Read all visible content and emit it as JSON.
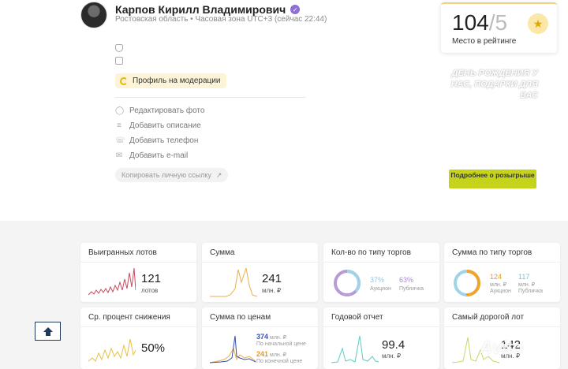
{
  "profile": {
    "name": "Карпов Кирилл Владимирович",
    "region": "Ростовская область • Часовая зона UTC+3 (сейчас 22:44)",
    "moderation": "Профиль на модерации",
    "actions": [
      "Редактировать фото",
      "Добавить описание",
      "Добавить телефон",
      "Добавить e-mail"
    ],
    "copy_link": "Копировать личную ссылку"
  },
  "rating": {
    "value": "104",
    "of": "/5",
    "label": "Место в рейтинге"
  },
  "promo": {
    "text": "День рождения у нас, подарки для вас",
    "button": "Подробнее о розыгрыше"
  },
  "cards": {
    "won_lots": {
      "title": "Выигранных лотов",
      "value": "121",
      "unit": "лотов"
    },
    "sum": {
      "title": "Сумма",
      "value": "241",
      "unit": "млн. ₽"
    },
    "count_by_type": {
      "title": "Кол-во по типу торгов",
      "a_pct": "37%",
      "a_label": "Аукцион",
      "b_pct": "63%",
      "b_label": "Публичка",
      "a_frac": 0.37
    },
    "sum_by_type": {
      "title": "Сумма по типу торгов",
      "a_val": "124",
      "a_unit": "млн. ₽",
      "a_label": "Аукцион",
      "b_val": "117",
      "b_unit": "млн. ₽",
      "b_label": "Публичка",
      "a_frac": 0.51
    },
    "avg_reduction": {
      "title": "Ср. процент снижения",
      "value": "50%"
    },
    "sum_by_price": {
      "title": "Сумма по ценам",
      "v1": "374",
      "v1_unit": "млн. ₽",
      "v1_label": "По начальной цене",
      "v2": "241",
      "v2_unit": "млн. ₽",
      "v2_label": "По конечной цене"
    },
    "annual": {
      "title": "Годовой отчет",
      "value": "99.4",
      "unit": "млн. ₽"
    },
    "most_expensive": {
      "title": "Самый дорогой лот",
      "value": "142",
      "unit": "млн. ₽"
    }
  },
  "watermark": "Avito",
  "colors": {
    "accent_green": "#c5d31a",
    "spark_red": "#c94a5f",
    "spark_orange": "#e8b04a",
    "donut_purple": "#b79ad6",
    "donut_blue": "#9fd3e8",
    "donut_orange": "#f0a52a",
    "spark_teal": "#58cfc0",
    "spark_lime": "#c9d66a",
    "spark_yellow": "#e6c23e"
  }
}
